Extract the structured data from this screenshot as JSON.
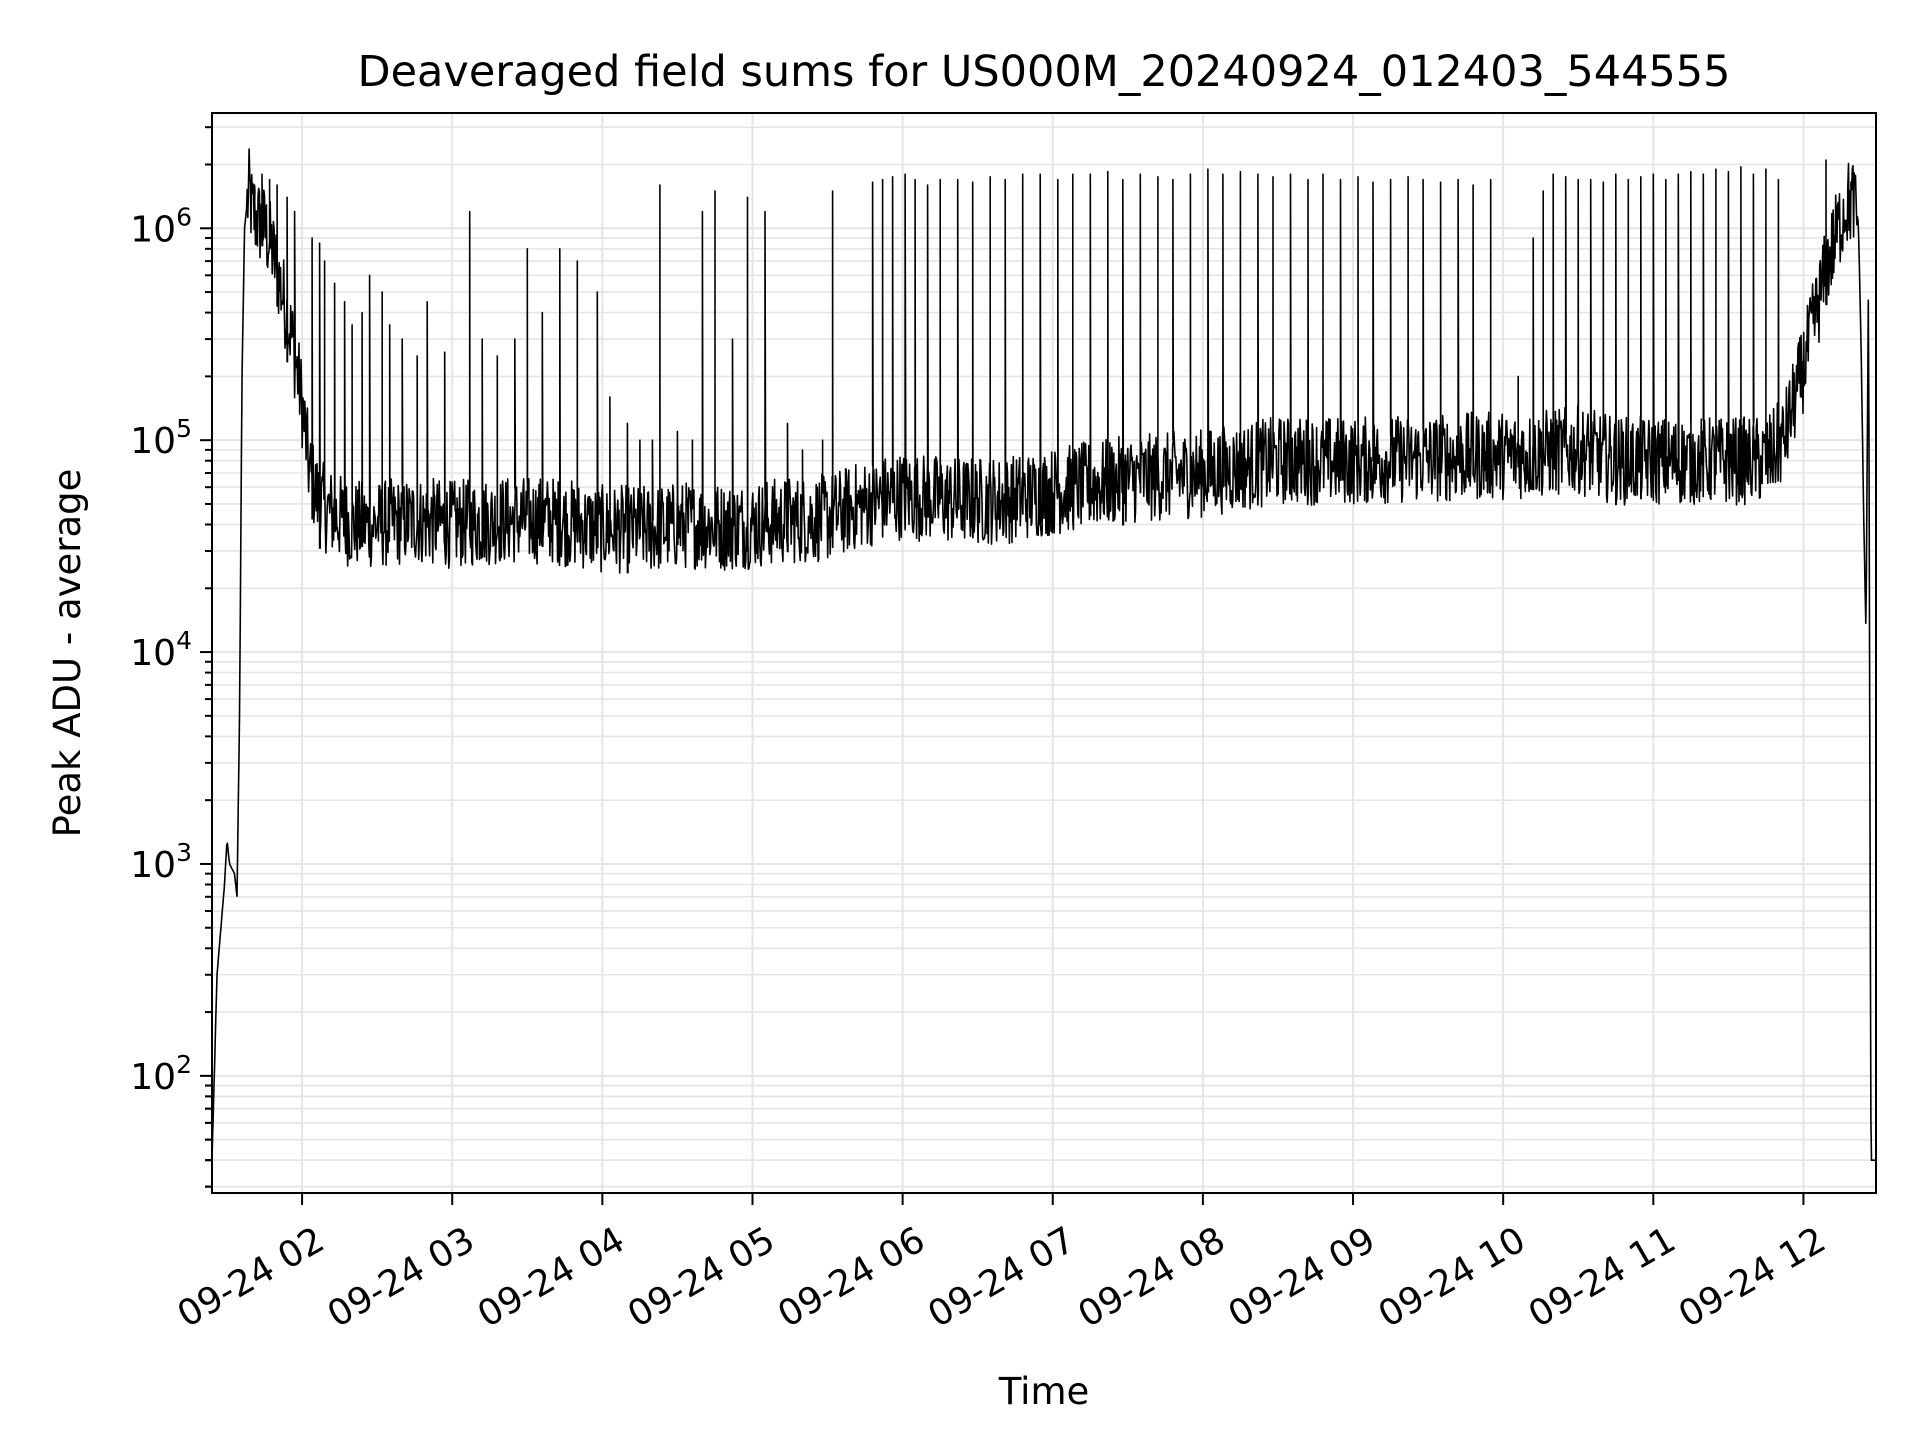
{
  "chart_data": {
    "type": "line",
    "title": "Deaveraged field sums for US000M_20240924_012403_544555",
    "xlabel": "Time",
    "ylabel": "Peak ADU - average",
    "yscale": "log",
    "ylim": [
      28,
      3500000
    ],
    "xlim": [
      "2024-09-24T01:24",
      "2024-09-24T12:29"
    ],
    "grid": true,
    "line_color": "#000000",
    "grid_color": "#e5e5e5",
    "x_ticks": [
      {
        "label": "09-24 02",
        "t": "2024-09-24T02:00"
      },
      {
        "label": "09-24 03",
        "t": "2024-09-24T03:00"
      },
      {
        "label": "09-24 04",
        "t": "2024-09-24T04:00"
      },
      {
        "label": "09-24 05",
        "t": "2024-09-24T05:00"
      },
      {
        "label": "09-24 06",
        "t": "2024-09-24T06:00"
      },
      {
        "label": "09-24 07",
        "t": "2024-09-24T07:00"
      },
      {
        "label": "09-24 08",
        "t": "2024-09-24T08:00"
      },
      {
        "label": "09-24 09",
        "t": "2024-09-24T09:00"
      },
      {
        "label": "09-24 10",
        "t": "2024-09-24T10:00"
      },
      {
        "label": "09-24 11",
        "t": "2024-09-24T11:00"
      },
      {
        "label": "09-24 12",
        "t": "2024-09-24T12:00"
      }
    ],
    "y_ticks": [
      {
        "base": "10",
        "exp": "2",
        "value": 100
      },
      {
        "base": "10",
        "exp": "3",
        "value": 1000
      },
      {
        "base": "10",
        "exp": "4",
        "value": 10000
      },
      {
        "base": "10",
        "exp": "5",
        "value": 100000
      },
      {
        "base": "10",
        "exp": "6",
        "value": 1000000
      }
    ],
    "series": [
      {
        "x": [
          "2024-09-24T01:24",
          "2024-09-24T01:26",
          "2024-09-24T01:29",
          "2024-09-24T01:30",
          "2024-09-24T01:31",
          "2024-09-24T01:33",
          "2024-09-24T01:34",
          "2024-09-24T01:35",
          "2024-09-24T01:36",
          "2024-09-24T01:37",
          "2024-09-24T01:38",
          "2024-09-24T01:39",
          "2024-09-24T01:40",
          "2024-09-24T01:42",
          "2024-09-24T01:45",
          "2024-09-24T01:48",
          "2024-09-24T01:52",
          "2024-09-24T01:56",
          "2024-09-24T02:00",
          "2024-09-24T02:03",
          "2024-09-24T02:07",
          "2024-09-24T02:12",
          "2024-09-24T02:20",
          "2024-09-24T02:30",
          "2024-09-24T02:45",
          "2024-09-24T03:00",
          "2024-09-24T03:20",
          "2024-09-24T03:40",
          "2024-09-24T04:00",
          "2024-09-24T04:20",
          "2024-09-24T04:35",
          "2024-09-24T04:50",
          "2024-09-24T05:00",
          "2024-09-24T05:15",
          "2024-09-24T05:30",
          "2024-09-24T05:40",
          "2024-09-24T05:50",
          "2024-09-24T06:00",
          "2024-09-24T06:20",
          "2024-09-24T06:40",
          "2024-09-24T06:55",
          "2024-09-24T07:10",
          "2024-09-24T07:30",
          "2024-09-24T08:00",
          "2024-09-24T08:30",
          "2024-09-24T09:00",
          "2024-09-24T09:30",
          "2024-09-24T10:00",
          "2024-09-24T10:10",
          "2024-09-24T10:30",
          "2024-09-24T10:45",
          "2024-09-24T11:00",
          "2024-09-24T11:20",
          "2024-09-24T11:35",
          "2024-09-24T11:45",
          "2024-09-24T11:52",
          "2024-09-24T12:00",
          "2024-09-24T12:05",
          "2024-09-24T12:10",
          "2024-09-24T12:15",
          "2024-09-24T12:17",
          "2024-09-24T12:20",
          "2024-09-24T12:22",
          "2024-09-24T12:23",
          "2024-09-24T12:24",
          "2024-09-24T12:25",
          "2024-09-24T12:26",
          "2024-09-24T12:27"
        ],
        "y": [
          40,
          300,
          800,
          1300,
          1000,
          900,
          700,
          5000,
          200000,
          1000000,
          1300000,
          1500000,
          1200000,
          1100000,
          1000000,
          800000,
          500000,
          300000,
          150000,
          70000,
          50000,
          45000,
          40000,
          40000,
          42000,
          40000,
          42000,
          42000,
          38000,
          38000,
          40000,
          39000,
          40000,
          42000,
          43000,
          48000,
          52000,
          55000,
          52000,
          52000,
          56000,
          60000,
          65000,
          70000,
          80000,
          80000,
          82000,
          85000,
          85000,
          90000,
          80000,
          80000,
          80000,
          80000,
          80000,
          100000,
          220000,
          400000,
          700000,
          1100000,
          1300000,
          1350000,
          1000000,
          300000,
          50000,
          12000,
          600000,
          40
        ]
      }
    ],
    "spikes": [
      [
        "2024-09-24T01:41",
        1600000
      ],
      [
        "2024-09-24T01:44",
        1800000
      ],
      [
        "2024-09-24T01:47",
        1700000
      ],
      [
        "2024-09-24T01:50",
        1600000
      ],
      [
        "2024-09-24T01:54",
        1400000
      ],
      [
        "2024-09-24T01:57",
        1200000
      ],
      [
        "2024-09-24T02:04",
        900000
      ],
      [
        "2024-09-24T02:07",
        850000
      ],
      [
        "2024-09-24T02:09",
        700000
      ],
      [
        "2024-09-24T02:13",
        550000
      ],
      [
        "2024-09-24T02:17",
        450000
      ],
      [
        "2024-09-24T02:20",
        350000
      ],
      [
        "2024-09-24T02:24",
        400000
      ],
      [
        "2024-09-24T02:27",
        600000
      ],
      [
        "2024-09-24T02:32",
        500000
      ],
      [
        "2024-09-24T02:35",
        350000
      ],
      [
        "2024-09-24T02:40",
        300000
      ],
      [
        "2024-09-24T02:46",
        250000
      ],
      [
        "2024-09-24T02:50",
        450000
      ],
      [
        "2024-09-24T02:57",
        260000
      ],
      [
        "2024-09-24T03:07",
        1200000
      ],
      [
        "2024-09-24T03:12",
        300000
      ],
      [
        "2024-09-24T03:18",
        250000
      ],
      [
        "2024-09-24T03:25",
        300000
      ],
      [
        "2024-09-24T03:30",
        800000
      ],
      [
        "2024-09-24T03:36",
        400000
      ],
      [
        "2024-09-24T03:43",
        800000
      ],
      [
        "2024-09-24T03:50",
        700000
      ],
      [
        "2024-09-24T03:58",
        500000
      ],
      [
        "2024-09-24T04:03",
        160000
      ],
      [
        "2024-09-24T04:10",
        120000
      ],
      [
        "2024-09-24T04:15",
        100000
      ],
      [
        "2024-09-24T04:20",
        100000
      ],
      [
        "2024-09-24T04:23",
        1600000
      ],
      [
        "2024-09-24T04:30",
        110000
      ],
      [
        "2024-09-24T04:36",
        100000
      ],
      [
        "2024-09-24T04:40",
        1200000
      ],
      [
        "2024-09-24T04:45",
        1500000
      ],
      [
        "2024-09-24T04:52",
        300000
      ],
      [
        "2024-09-24T04:58",
        1400000
      ],
      [
        "2024-09-24T05:05",
        1200000
      ],
      [
        "2024-09-24T05:14",
        120000
      ],
      [
        "2024-09-24T05:20",
        90000
      ],
      [
        "2024-09-24T05:28",
        100000
      ],
      [
        "2024-09-24T05:32",
        1500000
      ],
      [
        "2024-09-24T05:48",
        1650000
      ],
      [
        "2024-09-24T05:52",
        1700000
      ],
      [
        "2024-09-24T05:56",
        1750000
      ],
      [
        "2024-09-24T06:01",
        1800000
      ],
      [
        "2024-09-24T06:05",
        1700000
      ],
      [
        "2024-09-24T06:10",
        1600000
      ],
      [
        "2024-09-24T06:15",
        1700000
      ],
      [
        "2024-09-24T06:22",
        1700000
      ],
      [
        "2024-09-24T06:28",
        1650000
      ],
      [
        "2024-09-24T06:35",
        1750000
      ],
      [
        "2024-09-24T06:41",
        1700000
      ],
      [
        "2024-09-24T06:48",
        1800000
      ],
      [
        "2024-09-24T06:55",
        1800000
      ],
      [
        "2024-09-24T07:02",
        1700000
      ],
      [
        "2024-09-24T07:08",
        1800000
      ],
      [
        "2024-09-24T07:15",
        1800000
      ],
      [
        "2024-09-24T07:22",
        1850000
      ],
      [
        "2024-09-24T07:28",
        1700000
      ],
      [
        "2024-09-24T07:35",
        1800000
      ],
      [
        "2024-09-24T07:42",
        1750000
      ],
      [
        "2024-09-24T07:48",
        1700000
      ],
      [
        "2024-09-24T07:55",
        1800000
      ],
      [
        "2024-09-24T08:02",
        1900000
      ],
      [
        "2024-09-24T08:08",
        1800000
      ],
      [
        "2024-09-24T08:15",
        1850000
      ],
      [
        "2024-09-24T08:22",
        1800000
      ],
      [
        "2024-09-24T08:28",
        1750000
      ],
      [
        "2024-09-24T08:35",
        1800000
      ],
      [
        "2024-09-24T08:42",
        1700000
      ],
      [
        "2024-09-24T08:48",
        1800000
      ],
      [
        "2024-09-24T08:55",
        1700000
      ],
      [
        "2024-09-24T09:02",
        1750000
      ],
      [
        "2024-09-24T09:08",
        1650000
      ],
      [
        "2024-09-24T09:15",
        1700000
      ],
      [
        "2024-09-24T09:22",
        1750000
      ],
      [
        "2024-09-24T09:28",
        1700000
      ],
      [
        "2024-09-24T09:35",
        1650000
      ],
      [
        "2024-09-24T09:42",
        1700000
      ],
      [
        "2024-09-24T09:48",
        1600000
      ],
      [
        "2024-09-24T09:55",
        1700000
      ],
      [
        "2024-09-24T10:06",
        200000
      ],
      [
        "2024-09-24T10:12",
        900000
      ],
      [
        "2024-09-24T10:16",
        1500000
      ],
      [
        "2024-09-24T10:20",
        1800000
      ],
      [
        "2024-09-24T10:25",
        1750000
      ],
      [
        "2024-09-24T10:30",
        1700000
      ],
      [
        "2024-09-24T10:35",
        1700000
      ],
      [
        "2024-09-24T10:40",
        1650000
      ],
      [
        "2024-09-24T10:45",
        1800000
      ],
      [
        "2024-09-24T10:50",
        1700000
      ],
      [
        "2024-09-24T10:55",
        1750000
      ],
      [
        "2024-09-24T11:00",
        1800000
      ],
      [
        "2024-09-24T11:05",
        1700000
      ],
      [
        "2024-09-24T11:10",
        1800000
      ],
      [
        "2024-09-24T11:15",
        1850000
      ],
      [
        "2024-09-24T11:20",
        1800000
      ],
      [
        "2024-09-24T11:25",
        1900000
      ],
      [
        "2024-09-24T11:30",
        1850000
      ],
      [
        "2024-09-24T11:35",
        1950000
      ],
      [
        "2024-09-24T11:40",
        1800000
      ],
      [
        "2024-09-24T11:45",
        1900000
      ],
      [
        "2024-09-24T11:50",
        1700000
      ],
      [
        "2024-09-24T12:09",
        2100000
      ]
    ]
  }
}
